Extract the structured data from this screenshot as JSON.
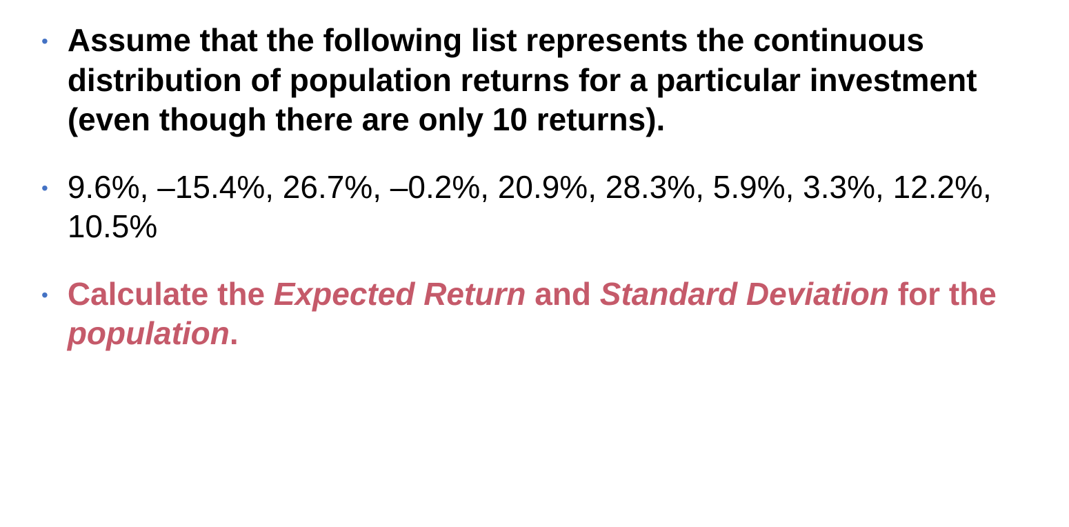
{
  "items": [
    {
      "text": "Assume that the following list represents the continuous distribution of population returns for a particular investment (even though there are only 10 returns).",
      "style": "bold",
      "color": "#000000"
    },
    {
      "text": "9.6%, –15.4%, 26.7%, –0.2%, 20.9%, 28.3%, 5.9%, 3.3%, 12.2%, 10.5%",
      "style": "normal",
      "color": "#000000"
    },
    {
      "parts": [
        {
          "text": "Calculate the ",
          "style": "highlight"
        },
        {
          "text": "Expected Return",
          "style": "highlight-italic"
        },
        {
          "text": " and ",
          "style": "highlight"
        },
        {
          "text": "Standard Deviation",
          "style": "highlight-italic"
        },
        {
          "text": " for the ",
          "style": "highlight"
        },
        {
          "text": "population",
          "style": "highlight-italic"
        },
        {
          "text": ".",
          "style": "highlight"
        }
      ],
      "color": "#c55a6a"
    }
  ],
  "bullet_color": "#4472c4",
  "background_color": "#ffffff",
  "text_color": "#000000",
  "highlight_color": "#c55a6a",
  "font_size": 46,
  "bullet_font_size": 28
}
